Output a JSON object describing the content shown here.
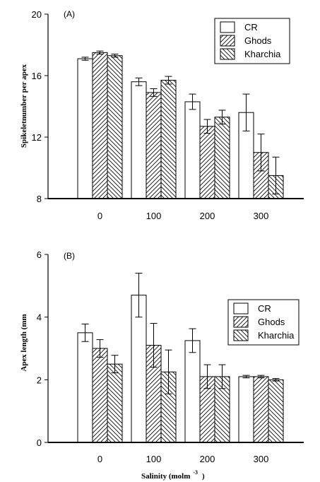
{
  "chart_data": [
    {
      "type": "bar",
      "panel_label": "(A)",
      "ylabel": "Spikeletnumber per apex",
      "xlabel": "",
      "categories": [
        "0",
        "100",
        "200",
        "300"
      ],
      "ylim": [
        8,
        20
      ],
      "yticks": [
        "8",
        "12",
        "16",
        "20"
      ],
      "legend_position": "top-right",
      "series": [
        {
          "name": "CR",
          "pattern": "none",
          "values": [
            17.1,
            15.6,
            14.3,
            13.6
          ],
          "errors": [
            0.1,
            0.25,
            0.5,
            1.2
          ]
        },
        {
          "name": "Ghods",
          "pattern": "hatch-forward",
          "values": [
            17.5,
            14.9,
            12.7,
            11.0
          ],
          "errors": [
            0.1,
            0.25,
            0.45,
            1.2
          ]
        },
        {
          "name": "Kharchia",
          "pattern": "hatch-backward",
          "values": [
            17.3,
            15.7,
            13.3,
            9.5
          ],
          "errors": [
            0.1,
            0.25,
            0.45,
            1.2
          ]
        }
      ]
    },
    {
      "type": "bar",
      "panel_label": "(B)",
      "ylabel": "Apex length (mm",
      "xlabel": "Salinity (molm",
      "xlabel_sup": "-3",
      "xlabel_suffix": ")",
      "categories": [
        "0",
        "100",
        "200",
        "300"
      ],
      "ylim": [
        0,
        6
      ],
      "yticks": [
        "0",
        "2",
        "4",
        "6"
      ],
      "legend_position": "right",
      "series": [
        {
          "name": "CR",
          "pattern": "none",
          "values": [
            3.5,
            4.7,
            3.25,
            2.1
          ],
          "errors": [
            0.28,
            0.7,
            0.38,
            0.04
          ]
        },
        {
          "name": "Ghods",
          "pattern": "hatch-forward",
          "values": [
            3.0,
            3.1,
            2.1,
            2.1
          ],
          "errors": [
            0.28,
            0.7,
            0.38,
            0.04
          ]
        },
        {
          "name": "Kharchia",
          "pattern": "hatch-backward",
          "values": [
            2.5,
            2.25,
            2.1,
            2.0
          ],
          "errors": [
            0.28,
            0.7,
            0.38,
            0.04
          ]
        }
      ]
    }
  ]
}
